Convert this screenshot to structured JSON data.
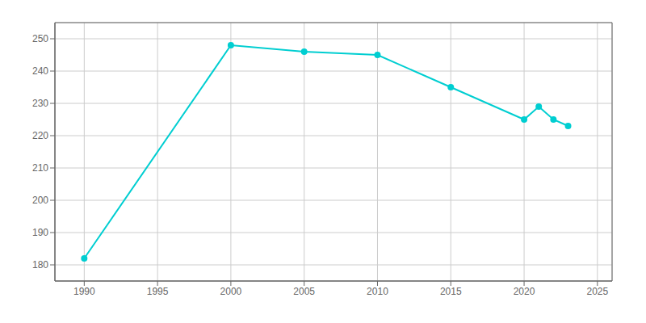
{
  "chart_data": {
    "type": "line",
    "x": [
      1990,
      2000,
      2005,
      2010,
      2015,
      2020,
      2021,
      2022,
      2023
    ],
    "values": [
      182,
      248,
      246,
      245,
      235,
      225,
      229,
      225,
      223
    ],
    "color": "#00CED1",
    "xlim": [
      1988,
      2026
    ],
    "ylim": [
      175,
      255
    ],
    "xticks": [
      1990,
      1995,
      2000,
      2005,
      2010,
      2015,
      2020,
      2025
    ],
    "yticks": [
      180,
      190,
      200,
      210,
      220,
      230,
      240,
      250
    ],
    "grid": true,
    "marker": "circle"
  }
}
